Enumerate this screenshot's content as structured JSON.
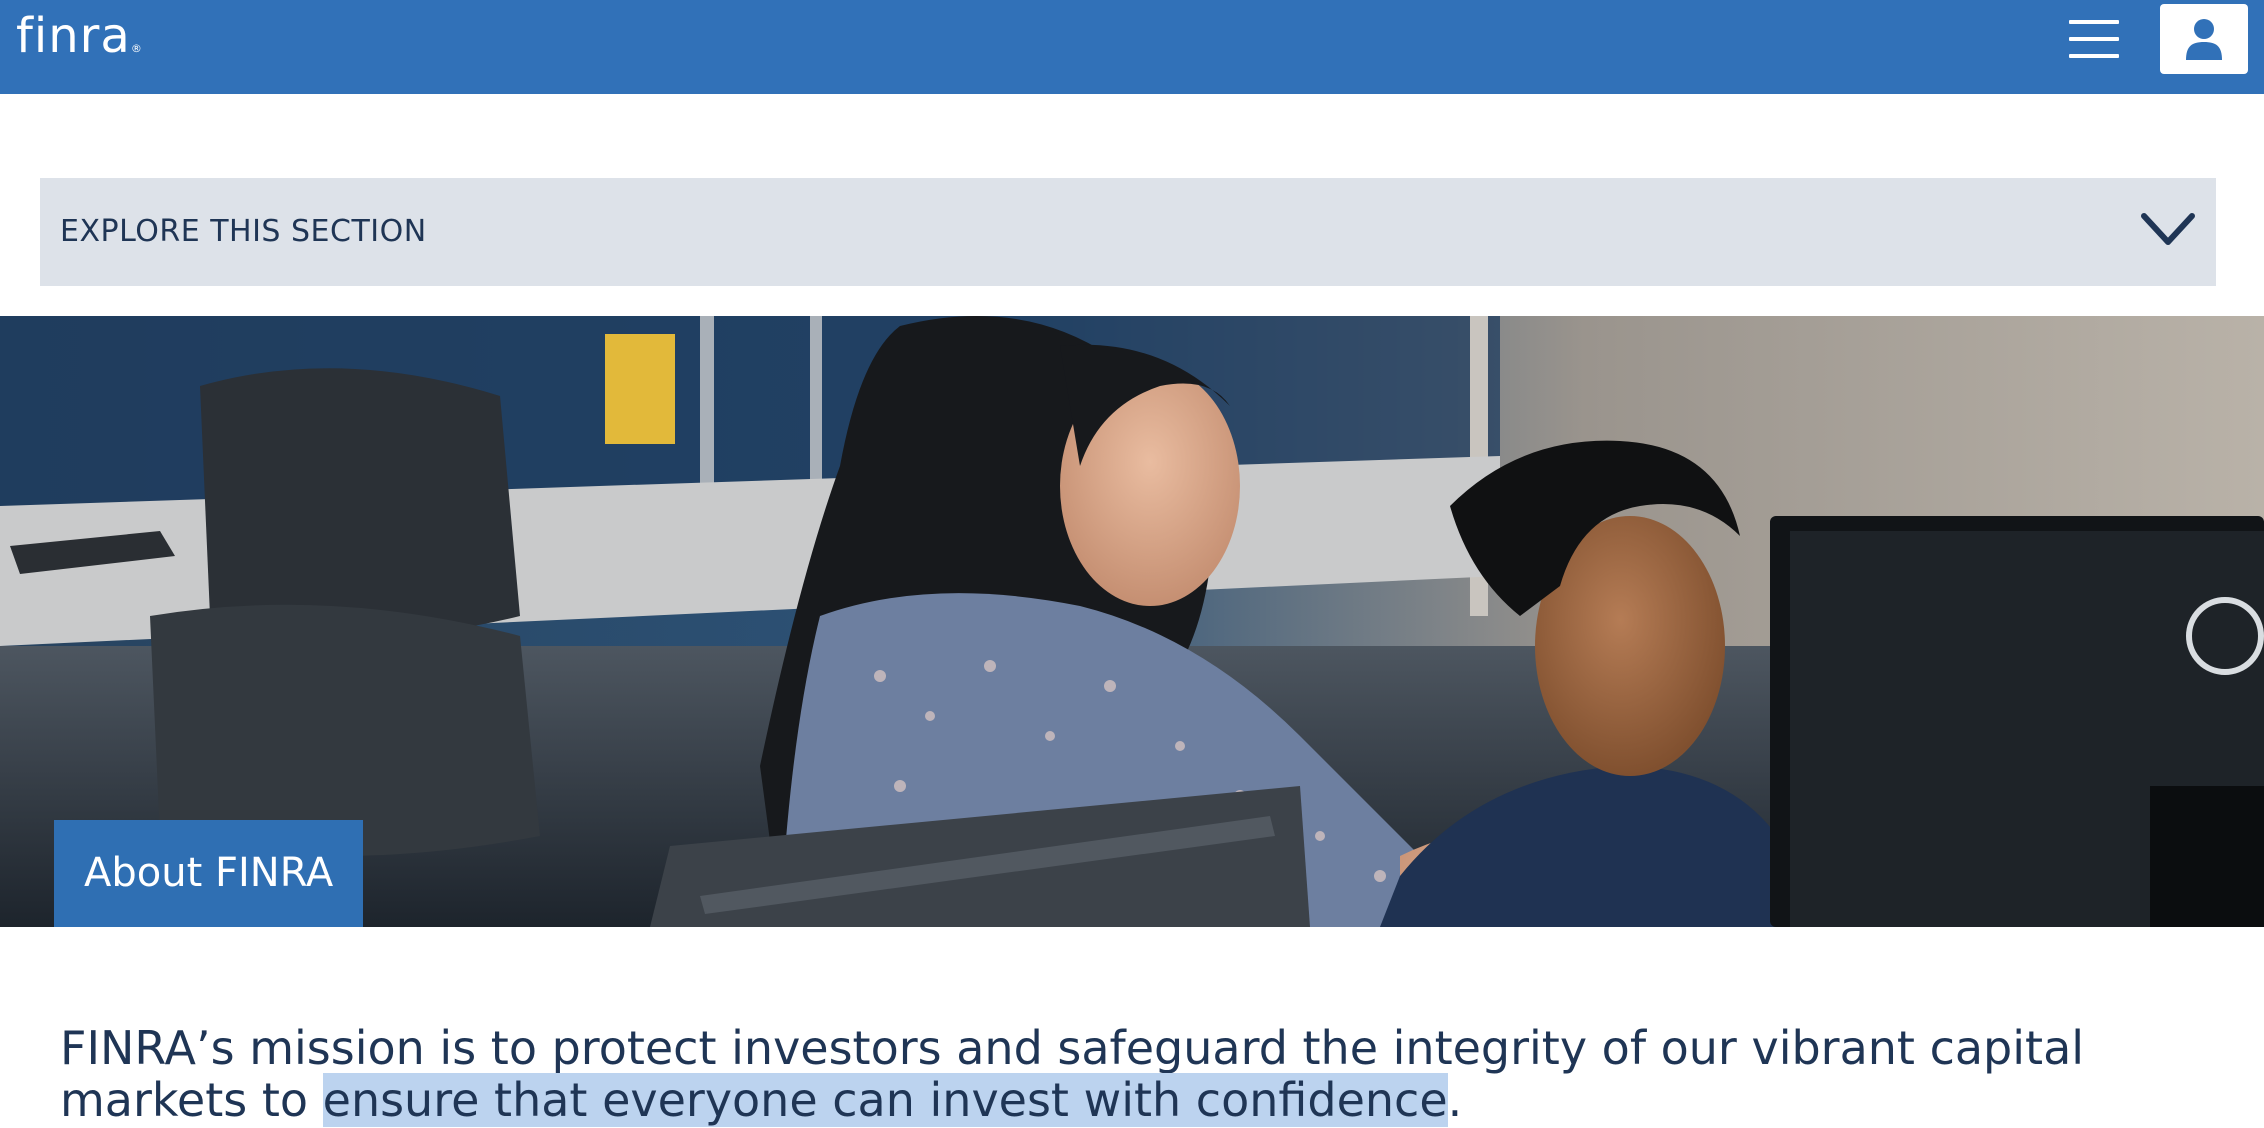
{
  "header": {
    "logo_text": "finra",
    "logo_mark": "®",
    "menu_icon": "hamburger-menu-icon",
    "user_icon": "user-icon",
    "brand_color": "#3171b8"
  },
  "explore": {
    "label": "EXPLORE THIS SECTION",
    "icon": "chevron-down-icon",
    "background": "#dde2e9"
  },
  "hero": {
    "title": "About FINRA",
    "image": "office-photo-two-colleagues-at-computer"
  },
  "mission": {
    "prefix": "FINRA’s mission is to protect investors and safeguard the integrity of our vibrant capital markets to ",
    "highlighted": "ensure that everyone can invest with confidence",
    "suffix": "."
  }
}
